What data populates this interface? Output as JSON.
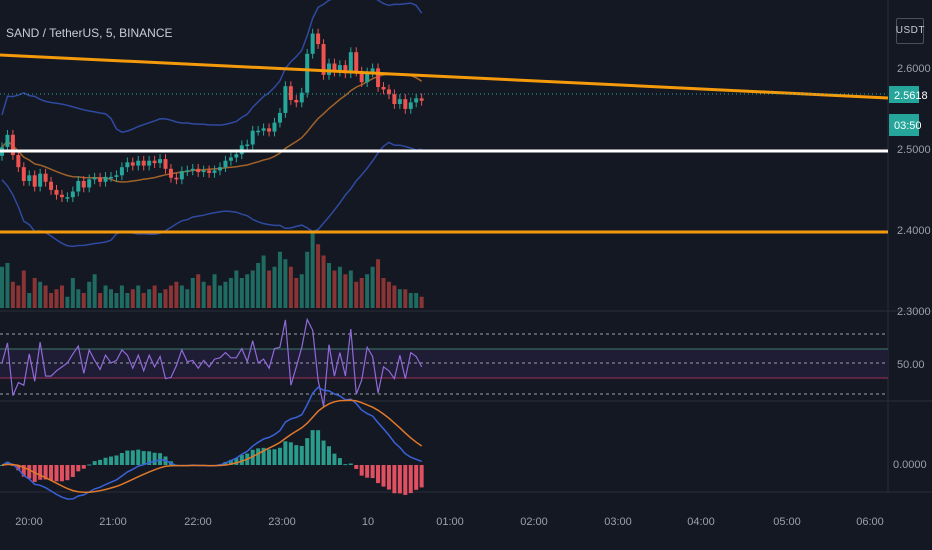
{
  "header": {
    "symbol_title": "SAND / TetherUS, 5, BINANCE",
    "currency_button": "USDT"
  },
  "colors": {
    "background": "#141823",
    "up": "#26a69a",
    "down": "#ef5350",
    "trendline": "#f59a0b",
    "level_white": "#ffffff",
    "level_orange": "#f59a0b",
    "bb": "#2f4aa0",
    "ma": "#a0622a",
    "rsi": "#8f6ad8",
    "macd": "#3a62d9",
    "signal": "#e0792a"
  },
  "price_axis": {
    "labels": [
      "2.6000",
      "2.4000",
      "2.3000"
    ],
    "last_price": "2.5618",
    "countdown": "03:50",
    "hidden_label": "2.5000"
  },
  "rsi_axis": {
    "label": "50.00"
  },
  "macd_axis": {
    "label": "0.0000"
  },
  "time_axis": {
    "labels": [
      "20:00",
      "21:00",
      "22:00",
      "23:00",
      "10",
      "01:00",
      "02:00",
      "03:00",
      "04:00",
      "05:00",
      "06:00"
    ]
  },
  "chart_data": {
    "type": "candlestick",
    "title": "SAND / TetherUS, 5, BINANCE",
    "x_ticks": [
      "20:00",
      "21:00",
      "22:00",
      "23:00",
      "10",
      "01:00",
      "02:00",
      "03:00",
      "04:00",
      "05:00",
      "06:00"
    ],
    "y_ticks": [
      "2.3000",
      "2.4000",
      "2.5000",
      "2.6000"
    ],
    "ylim": [
      2.28,
      2.67
    ],
    "last_price": 2.5618,
    "horizontal_levels": [
      2.5,
      2.39
    ],
    "trendline": {
      "from": [
        2.6235,
        0
      ],
      "to": [
        2.557,
        1
      ]
    },
    "close": [
      2.5046,
      2.52,
      2.495,
      2.48,
      2.463,
      2.47,
      2.456,
      2.472,
      2.462,
      2.452,
      2.446,
      2.443,
      2.443,
      2.45,
      2.463,
      2.455,
      2.465,
      2.467,
      2.462,
      2.468,
      2.468,
      2.47,
      2.48,
      2.486,
      2.482,
      2.488,
      2.482,
      2.488,
      2.485,
      2.49,
      2.478,
      2.467,
      2.465,
      2.475,
      2.476,
      2.478,
      2.474,
      2.476,
      2.473,
      2.476,
      2.48,
      2.488,
      2.492,
      2.496,
      2.507,
      2.508,
      2.525,
      2.525,
      2.528,
      2.524,
      2.535,
      2.547,
      2.58,
      2.563,
      2.56,
      2.572,
      2.62,
      2.645,
      2.632,
      2.594,
      2.608,
      2.598,
      2.606,
      2.596,
      2.622,
      2.598,
      2.585,
      2.597,
      2.602,
      2.579,
      2.576,
      2.57,
      2.558,
      2.564,
      2.552,
      2.56,
      2.565,
      2.562
    ],
    "open": [
      2.494,
      2.505,
      2.52,
      2.495,
      2.48,
      2.463,
      2.47,
      2.456,
      2.472,
      2.462,
      2.452,
      2.446,
      2.443,
      2.443,
      2.45,
      2.463,
      2.455,
      2.465,
      2.467,
      2.462,
      2.468,
      2.468,
      2.47,
      2.48,
      2.486,
      2.482,
      2.488,
      2.482,
      2.488,
      2.485,
      2.49,
      2.478,
      2.467,
      2.465,
      2.475,
      2.476,
      2.478,
      2.474,
      2.476,
      2.473,
      2.476,
      2.48,
      2.488,
      2.492,
      2.496,
      2.507,
      2.508,
      2.525,
      2.525,
      2.528,
      2.524,
      2.535,
      2.547,
      2.58,
      2.563,
      2.56,
      2.572,
      2.62,
      2.645,
      2.632,
      2.594,
      2.608,
      2.598,
      2.606,
      2.596,
      2.622,
      2.598,
      2.585,
      2.597,
      2.602,
      2.579,
      2.576,
      2.57,
      2.558,
      2.564,
      2.552,
      2.56,
      2.565
    ],
    "volume": [
      0.55,
      0.6,
      0.35,
      0.3,
      0.5,
      0.2,
      0.4,
      0.35,
      0.3,
      0.2,
      0.25,
      0.3,
      0.15,
      0.4,
      0.25,
      0.2,
      0.35,
      0.45,
      0.2,
      0.3,
      0.25,
      0.2,
      0.3,
      0.2,
      0.25,
      0.3,
      0.2,
      0.25,
      0.3,
      0.2,
      0.25,
      0.3,
      0.35,
      0.3,
      0.25,
      0.4,
      0.45,
      0.35,
      0.3,
      0.45,
      0.3,
      0.35,
      0.4,
      0.5,
      0.4,
      0.45,
      0.5,
      0.6,
      0.7,
      0.5,
      0.55,
      0.75,
      0.65,
      0.55,
      0.4,
      0.45,
      0.75,
      1.0,
      0.85,
      0.7,
      0.6,
      0.5,
      0.55,
      0.45,
      0.5,
      0.35,
      0.4,
      0.45,
      0.55,
      0.65,
      0.4,
      0.35,
      0.3,
      0.25,
      0.25,
      0.2,
      0.2,
      0.15
    ],
    "rsi_levels": [
      70,
      50,
      30
    ],
    "rsi_band": [
      60,
      40
    ]
  }
}
